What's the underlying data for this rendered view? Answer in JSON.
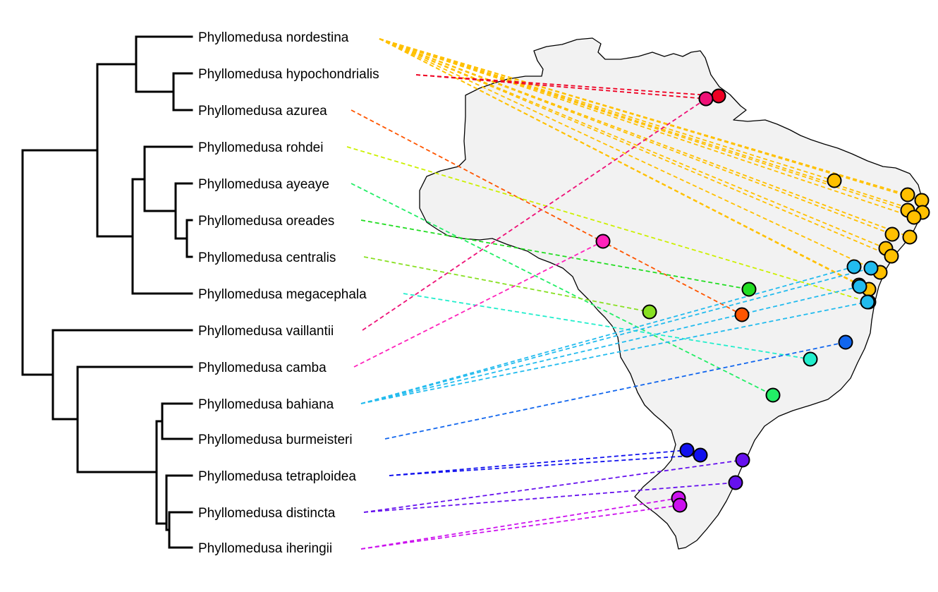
{
  "figure": {
    "colors": {
      "branch": "#000000",
      "map_fill": "#f2f2f2",
      "map_stroke": "#000000"
    }
  },
  "species": [
    {
      "id": "nordestina",
      "label": "Phyllomedusa nordestina",
      "color": "#FFC000"
    },
    {
      "id": "hypochondrialis",
      "label": "Phyllomedusa hypochondrialis",
      "color": "#EE0022"
    },
    {
      "id": "azurea",
      "label": "Phyllomedusa azurea",
      "color": "#FF5500"
    },
    {
      "id": "rohdei",
      "label": "Phyllomedusa rohdei",
      "color": "#CCF000"
    },
    {
      "id": "ayeaye",
      "label": "Phyllomedusa ayeaye",
      "color": "#22EE66"
    },
    {
      "id": "oreades",
      "label": "Phyllomedusa oreades",
      "color": "#22DD22"
    },
    {
      "id": "centralis",
      "label": "Phyllomedusa centralis",
      "color": "#88E022"
    },
    {
      "id": "megacephala",
      "label": "Phyllomedusa megacephala",
      "color": "#22EECC"
    },
    {
      "id": "vaillantii",
      "label": "Phyllomedusa vaillantii",
      "color": "#EE1177"
    },
    {
      "id": "camba",
      "label": "Phyllomedusa camba",
      "color": "#FF22BB"
    },
    {
      "id": "bahiana",
      "label": "Phyllomedusa bahiana",
      "color": "#22BBEE"
    },
    {
      "id": "burmeisteri",
      "label": "Phyllomedusa burmeisteri",
      "color": "#1166EE"
    },
    {
      "id": "tetraploidea",
      "label": "Phyllomedusa tetraploidea",
      "color": "#1111EE"
    },
    {
      "id": "distincta",
      "label": "Phyllomedusa distincta",
      "color": "#6611EE"
    },
    {
      "id": "iheringii",
      "label": "Phyllomedusa iheringii",
      "color": "#CC11EE"
    }
  ],
  "tree": {
    "clades": [
      [
        "nordestina",
        "hypochondrialis",
        "azurea"
      ],
      [
        "rohdei",
        "ayeaye",
        "oreades",
        "centralis",
        "megacephala"
      ],
      [
        "vaillantii",
        "camba",
        "bahiana",
        "burmeisteri",
        "tetraploidea",
        "distincta",
        "iheringii"
      ]
    ],
    "topology": "(((nordestina,(hypochondrialis,azurea)),((rohdei,(ayeaye,(oreades,centralis))),megacephala)),(vaillantii,(camba,((bahiana,burmeisteri),(tetraploidea,(distincta,iheringii))))))"
  }
}
